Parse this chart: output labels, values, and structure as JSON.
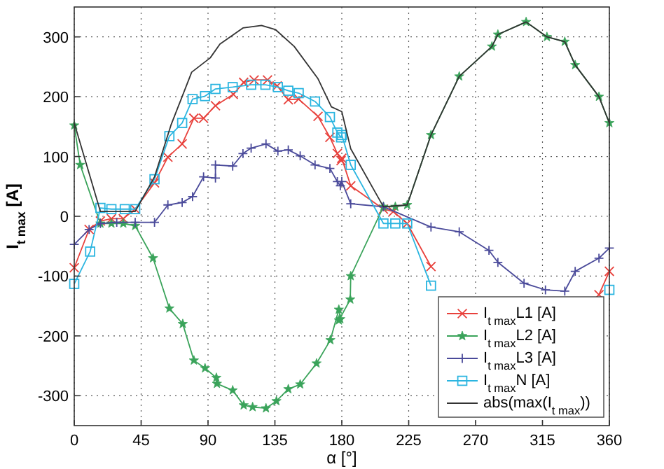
{
  "chart_data": {
    "type": "line",
    "xlabel": "α [°]",
    "ylabel": "I$_{t max}$ [A]",
    "xlim": [
      0,
      360
    ],
    "xticks": [
      0,
      45,
      90,
      135,
      180,
      225,
      270,
      315,
      360
    ],
    "ylim": [
      -350,
      350
    ],
    "yticks": [
      -300,
      -200,
      -100,
      0,
      100,
      200,
      300
    ],
    "grid": true,
    "legend": "bottom right",
    "line_style": "solid",
    "series": [
      {
        "name": "I$_{t max}$L1 [A]",
        "color": "#e8413c",
        "marker": "x",
        "x": [
          0,
          10,
          17.6,
          25,
          33,
          41,
          54,
          63,
          72.6,
          80.5,
          87,
          95,
          107,
          114,
          121,
          130,
          136.5,
          144,
          151,
          164,
          172,
          177,
          179.5,
          180,
          186,
          208,
          214.6,
          224,
          240,
          250,
          353,
          360
        ],
        "values": [
          -86,
          -22,
          -8,
          -4,
          -4,
          12,
          56,
          99,
          121,
          164,
          164,
          185,
          204,
          224,
          228,
          228,
          218,
          195,
          196,
          167,
          132,
          105,
          93,
          97,
          51,
          12,
          8,
          -12,
          -84,
          null,
          -131,
          -92
        ]
      },
      {
        "name": "I$_{t max}$L2 [A]",
        "color": "#3aa35a",
        "marker": "star",
        "x": [
          0,
          4,
          17.6,
          25,
          33,
          41,
          53,
          64,
          73,
          80.5,
          88,
          95.6,
          96,
          106.6,
          114,
          120,
          129,
          136,
          144,
          152,
          163,
          172.3,
          178,
          179,
          178,
          185.7,
          186,
          208,
          216,
          224,
          240,
          259,
          281,
          285,
          304,
          318,
          330,
          337,
          353,
          360
        ],
        "values": [
          152,
          86,
          -12,
          -12,
          -12,
          -16,
          -70,
          -154,
          -180,
          -241,
          -254,
          -270,
          -280,
          -291,
          -316,
          -319,
          -321,
          -309,
          -289,
          -281,
          -246,
          -207,
          -156,
          -172,
          -174,
          -139,
          -100,
          16,
          16,
          19,
          136,
          234,
          284,
          304,
          325,
          300,
          292,
          253,
          200,
          156
        ]
      },
      {
        "name": "I$_{t max}$L3 [A]",
        "color": "#4a4a9a",
        "marker": "cross",
        "x": [
          0,
          10,
          17.6,
          28.6,
          41,
          54,
          63,
          72.6,
          79.6,
          87,
          95,
          95,
          106.6,
          113.5,
          119,
          129,
          137,
          144,
          152,
          162,
          172,
          177,
          179,
          180,
          186,
          208,
          240,
          259,
          279,
          285,
          302.6,
          317,
          330,
          337,
          353,
          360
        ],
        "values": [
          -47,
          -22,
          -12,
          -10,
          -10,
          -10,
          19,
          23,
          33,
          66,
          64,
          86,
          84,
          105,
          114,
          121,
          109,
          111,
          101,
          86,
          80,
          58,
          51,
          58,
          21,
          16,
          -18,
          -26,
          -57,
          -77,
          -112,
          -123,
          -125,
          -92,
          -70,
          -53
        ]
      },
      {
        "name": "I$_{t max}$N [A]",
        "color": "#2bb5e0",
        "marker": "square",
        "x": [
          0,
          10.7,
          17.6,
          25,
          34,
          41,
          54,
          64,
          72.6,
          79.6,
          88,
          95,
          106.6,
          119,
          128.6,
          137,
          144,
          151,
          162,
          172,
          177,
          179.5,
          180,
          186,
          208,
          216,
          224,
          240,
          250,
          360
        ],
        "values": [
          -113,
          -59,
          14,
          12,
          12,
          12,
          62,
          134,
          156,
          196,
          201,
          213,
          216,
          220,
          220,
          216,
          210,
          206,
          192,
          166,
          140,
          132,
          136,
          86,
          -12,
          -12,
          -12,
          -116,
          null,
          -123
        ]
      },
      {
        "name": "abs(max(I$_{t max}$))",
        "color": "#333333",
        "marker": "none",
        "x": [
          0,
          17.6,
          41,
          54,
          65,
          79,
          91.5,
          98,
          113.5,
          126,
          135.5,
          148,
          164,
          173,
          180,
          186,
          208,
          224,
          240,
          259,
          281,
          285,
          304,
          318,
          330,
          337,
          353,
          360
        ],
        "values": [
          156,
          8,
          8,
          66,
          152,
          241,
          265,
          288,
          315,
          319,
          312,
          284,
          230,
          183,
          175,
          113,
          16,
          19,
          136,
          234,
          284,
          304,
          325,
          300,
          292,
          253,
          200,
          156
        ]
      }
    ]
  }
}
